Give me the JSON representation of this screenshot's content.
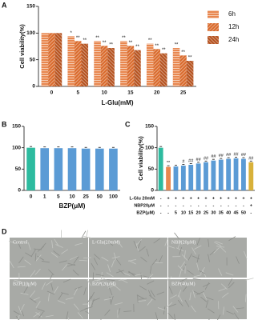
{
  "chart_data": [
    {
      "type": "bar",
      "panel": "A",
      "ylabel": "Cell viability(%)",
      "xlabel": "L-Glu(mM)",
      "categories": [
        0,
        5,
        10,
        15,
        20,
        25
      ],
      "ylim": [
        0,
        150
      ],
      "yticks": [
        0,
        50,
        100,
        150
      ],
      "series": [
        {
          "name": "6h",
          "color": "#e8874f",
          "values": [
            100,
            94,
            85,
            85,
            80,
            72
          ],
          "annotations": [
            null,
            "*",
            "**",
            "**",
            "**",
            "**"
          ]
        },
        {
          "name": "12h",
          "color": "#d96a2c",
          "values": [
            100,
            85,
            76,
            76,
            70,
            58
          ],
          "annotations": [
            null,
            "**",
            "**",
            "**",
            "**",
            "**"
          ]
        },
        {
          "name": "24h",
          "color": "#b5521f",
          "values": [
            100,
            80,
            72,
            68,
            62,
            48
          ],
          "annotations": [
            null,
            "**",
            "**",
            "**",
            "**",
            "**"
          ]
        }
      ]
    },
    {
      "type": "bar",
      "panel": "B",
      "xlabel": "BZP(μM)",
      "categories": [
        0,
        1,
        5,
        10,
        25,
        50,
        100
      ],
      "values": [
        100,
        99,
        99,
        99,
        98,
        98,
        98
      ],
      "colors": [
        "#2dbb9f",
        "#5b9bd5",
        "#5b9bd5",
        "#5b9bd5",
        "#5b9bd5",
        "#5b9bd5",
        "#5b9bd5"
      ],
      "ylim": [
        0,
        150
      ],
      "yticks": [
        0,
        50,
        100,
        150
      ]
    },
    {
      "type": "bar",
      "panel": "C",
      "ylabel": "Cell viability(%)",
      "categories": [
        null,
        null,
        null,
        null,
        null,
        null,
        null,
        null,
        null,
        null,
        null,
        null,
        null
      ],
      "values": [
        100,
        55,
        56,
        58,
        60,
        63,
        66,
        70,
        72,
        74,
        75,
        74,
        66
      ],
      "colors": [
        "#2dbb9f",
        "#e8874f",
        "#5b9bd5",
        "#5b9bd5",
        "#5b9bd5",
        "#5b9bd5",
        "#5b9bd5",
        "#5b9bd5",
        "#5b9bd5",
        "#5b9bd5",
        "#5b9bd5",
        "#5b9bd5",
        "#d8b13a"
      ],
      "annotations": [
        null,
        "**",
        null,
        "#",
        "##",
        "##",
        "##",
        "##",
        "##",
        "##",
        "##",
        "##",
        "##"
      ],
      "ylim": [
        0,
        150
      ],
      "yticks": [
        0,
        50,
        100,
        150
      ],
      "conditions": [
        {
          "label": "L-Glu 20mM",
          "values": [
            "-",
            "+",
            "+",
            "+",
            "+",
            "+",
            "+",
            "+",
            "+",
            "+",
            "+",
            "+",
            "+"
          ]
        },
        {
          "label": "NBP20μM",
          "values": [
            "-",
            "-",
            "-",
            "-",
            "-",
            "-",
            "-",
            "-",
            "-",
            "-",
            "-",
            "-",
            "+"
          ]
        },
        {
          "label": "BZP(μM)",
          "values": [
            "-",
            "-",
            "5",
            "10",
            "15",
            "20",
            "25",
            "30",
            "35",
            "40",
            "45",
            "50",
            "-"
          ]
        }
      ]
    }
  ],
  "panel_d": {
    "panel": "D",
    "images": [
      "Control",
      "L-Glu(20mM)",
      "NBP(20μM)",
      "BZP(10μM)",
      "BZP(20μM)",
      "BZP(40μM)"
    ]
  }
}
